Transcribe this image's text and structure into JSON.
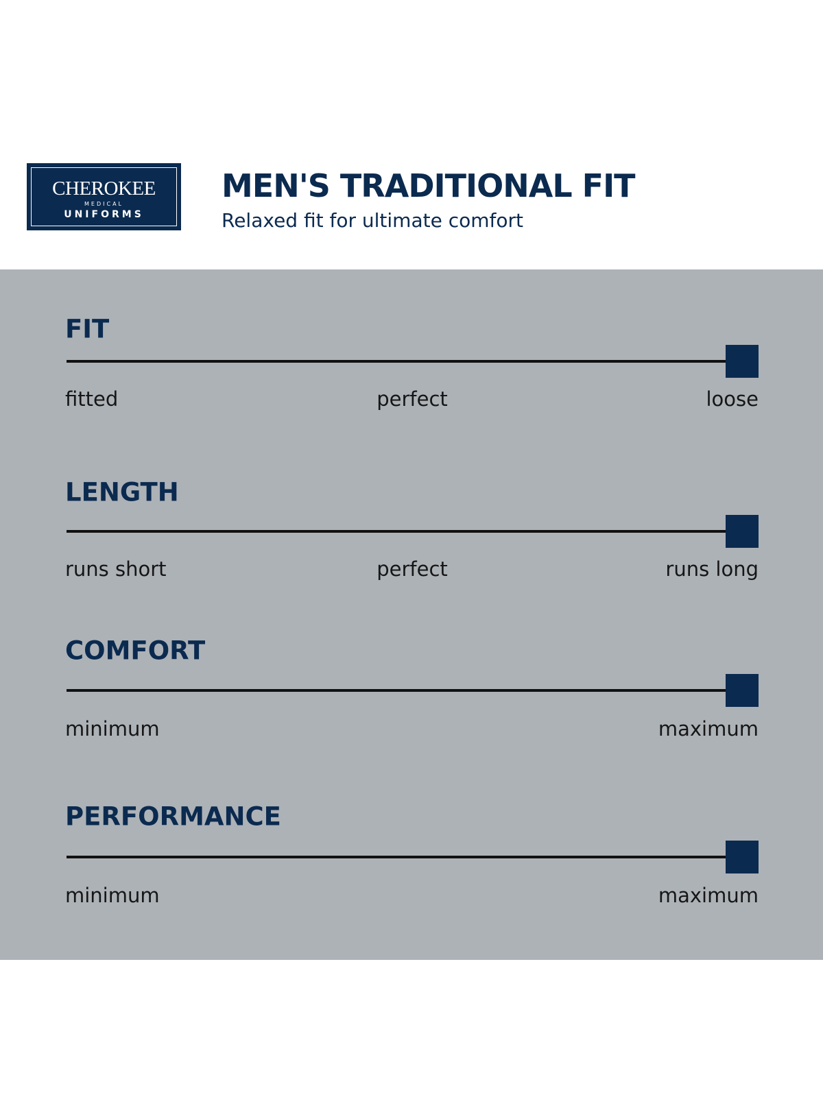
{
  "logo": {
    "brand": "CHEROKEE",
    "sub1": "MEDICAL",
    "sub2": "UNIFORMS"
  },
  "header": {
    "title": "MEN'S TRADITIONAL FIT",
    "subtitle": "Relaxed fit for ultimate comfort"
  },
  "scales": [
    {
      "title": "FIT",
      "labels": {
        "left": "fitted",
        "middle": "perfect",
        "right": "loose"
      }
    },
    {
      "title": "LENGTH",
      "labels": {
        "left": "runs short",
        "middle": "perfect",
        "right": "runs long"
      }
    },
    {
      "title": "COMFORT",
      "labels": {
        "left": "minimum",
        "right": "maximum"
      }
    },
    {
      "title": "PERFORMANCE",
      "labels": {
        "left": "minimum",
        "right": "maximum"
      }
    }
  ]
}
